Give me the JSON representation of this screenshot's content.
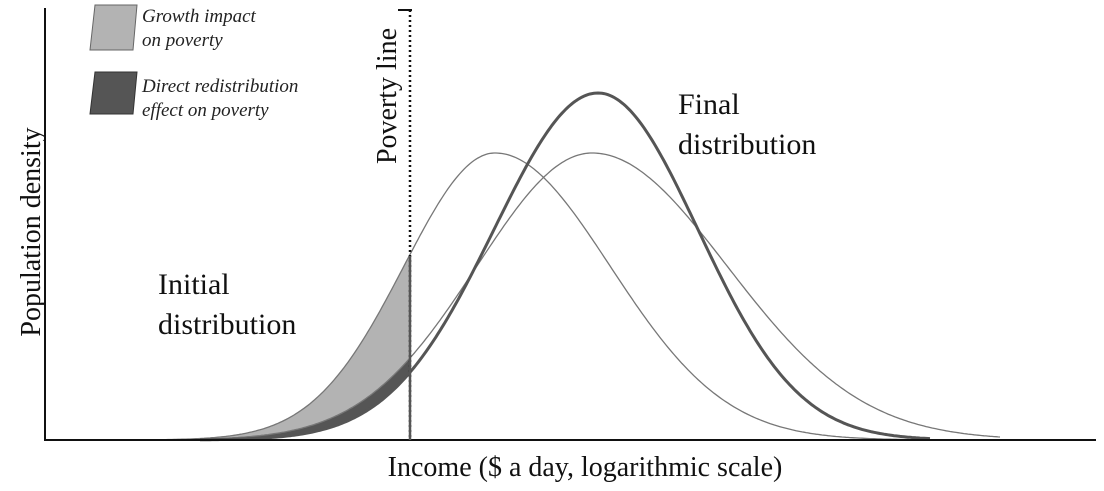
{
  "axes": {
    "y_label": "Population density",
    "x_label": "Income ($ a day, logarithmic scale)"
  },
  "poverty_line": {
    "label": "Poverty line"
  },
  "legend": [
    {
      "lines": [
        "Growth impact",
        "on poverty"
      ]
    },
    {
      "lines": [
        "Direct redistribution",
        "effect on poverty"
      ]
    }
  ],
  "annotations": [
    {
      "lines": [
        "Initial",
        "distribution"
      ]
    },
    {
      "lines": [
        "Final",
        "distribution"
      ]
    }
  ]
}
